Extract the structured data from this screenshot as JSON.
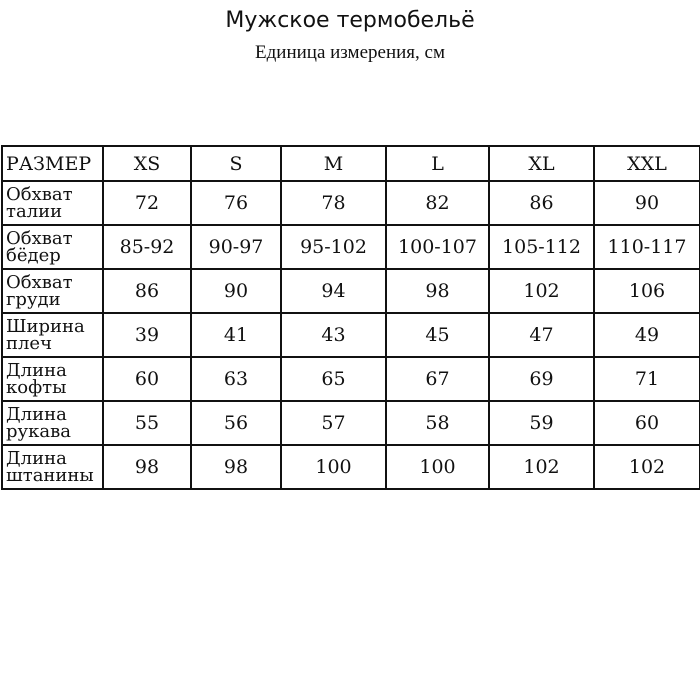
{
  "title": "Мужское термобельё",
  "subtitle": "Единица измерения, см",
  "table": {
    "header": [
      "РАЗМЕР",
      "XS",
      "S",
      "M",
      "L",
      "XL",
      "XXL"
    ],
    "rows": [
      {
        "label1": "Обхват",
        "label2": "талии",
        "values": [
          "72",
          "76",
          "78",
          "82",
          "86",
          "90"
        ]
      },
      {
        "label1": "Обхват",
        "label2": "бёдер",
        "values": [
          "85-92",
          "90-97",
          "95-102",
          "100-107",
          "105-112",
          "110-117"
        ]
      },
      {
        "label1": "Обхват",
        "label2": "груди",
        "values": [
          "86",
          "90",
          "94",
          "98",
          "102",
          "106"
        ]
      },
      {
        "label1": "Ширина",
        "label2": "плеч",
        "values": [
          "39",
          "41",
          "43",
          "45",
          "47",
          "49"
        ]
      },
      {
        "label1": "Длина",
        "label2": "кофты",
        "values": [
          "60",
          "63",
          "65",
          "67",
          "69",
          "71"
        ]
      },
      {
        "label1": "Длина",
        "label2": "рукава",
        "values": [
          "55",
          "56",
          "57",
          "58",
          "59",
          "60"
        ]
      },
      {
        "label1": "Длина",
        "label2": "штанины",
        "values": [
          "98",
          "98",
          "100",
          "100",
          "102",
          "102"
        ]
      }
    ]
  }
}
